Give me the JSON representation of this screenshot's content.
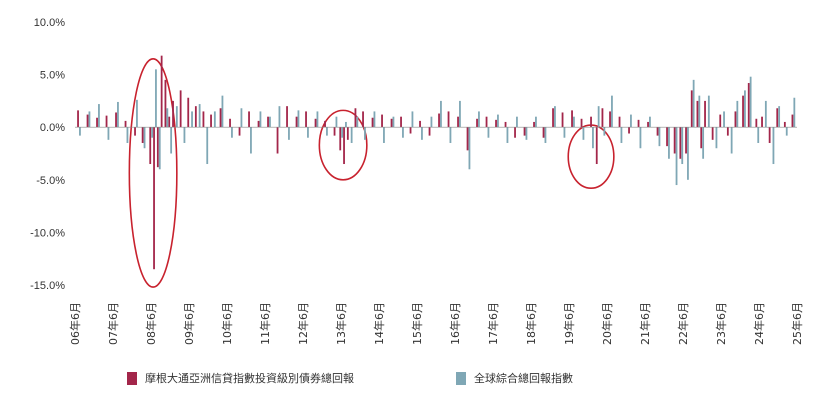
{
  "chart_data": {
    "type": "bar",
    "ylim": [
      -15,
      10
    ],
    "y_ticks": [
      "10.0%",
      "5.0%",
      "0.0%",
      "-5.0%",
      "-10.0%",
      "-15.0%"
    ],
    "y_tick_values": [
      10,
      5,
      0,
      -5,
      -10,
      -15
    ],
    "x_ticks": [
      "06年6月",
      "07年6月",
      "08年6月",
      "09年6月",
      "10年6月",
      "11年6月",
      "12年6月",
      "13年6月",
      "14年6月",
      "15年6月",
      "16年6月",
      "17年6月",
      "18年6月",
      "19年6月",
      "20年6月",
      "21年6月",
      "22年6月",
      "23年6月",
      "24年6月",
      "25年6月"
    ],
    "x_tick_values": [
      2006.42,
      2007.42,
      2008.42,
      2009.42,
      2010.42,
      2011.42,
      2012.42,
      2013.42,
      2014.42,
      2015.42,
      2016.42,
      2017.42,
      2018.42,
      2019.42,
      2020.42,
      2021.42,
      2022.42,
      2023.42,
      2024.42,
      2025.42
    ],
    "x_range": [
      2006.42,
      2025.42
    ],
    "grid": false,
    "legend_position": "bottom",
    "series": [
      {
        "name": "摩根大通亞洲信貸指數投資級別債券總回報",
        "color": "#A3264A",
        "points": [
          [
            2006.5,
            1.6
          ],
          [
            2006.75,
            1.2
          ],
          [
            2007.0,
            0.9
          ],
          [
            2007.25,
            1.1
          ],
          [
            2007.5,
            1.4
          ],
          [
            2007.75,
            0.6
          ],
          [
            2008.0,
            -0.8
          ],
          [
            2008.2,
            -1.5
          ],
          [
            2008.4,
            -3.5
          ],
          [
            2008.5,
            -13.5
          ],
          [
            2008.6,
            -3.8
          ],
          [
            2008.7,
            6.8
          ],
          [
            2008.8,
            4.5
          ],
          [
            2008.9,
            1.0
          ],
          [
            2009.0,
            2.5
          ],
          [
            2009.2,
            3.5
          ],
          [
            2009.4,
            2.8
          ],
          [
            2009.6,
            2.0
          ],
          [
            2009.8,
            1.5
          ],
          [
            2010.0,
            1.2
          ],
          [
            2010.25,
            1.8
          ],
          [
            2010.5,
            0.8
          ],
          [
            2010.75,
            -0.8
          ],
          [
            2011.0,
            1.5
          ],
          [
            2011.25,
            0.6
          ],
          [
            2011.5,
            1.0
          ],
          [
            2011.75,
            -2.5
          ],
          [
            2012.0,
            2.0
          ],
          [
            2012.25,
            1.0
          ],
          [
            2012.5,
            1.5
          ],
          [
            2012.75,
            0.8
          ],
          [
            2013.0,
            0.6
          ],
          [
            2013.25,
            -0.8
          ],
          [
            2013.4,
            -2.2
          ],
          [
            2013.5,
            -3.5
          ],
          [
            2013.6,
            -1.2
          ],
          [
            2013.8,
            1.8
          ],
          [
            2014.0,
            1.5
          ],
          [
            2014.25,
            0.9
          ],
          [
            2014.5,
            1.2
          ],
          [
            2014.75,
            0.8
          ],
          [
            2015.0,
            1.0
          ],
          [
            2015.25,
            -0.6
          ],
          [
            2015.5,
            0.6
          ],
          [
            2015.75,
            -0.8
          ],
          [
            2016.0,
            1.3
          ],
          [
            2016.25,
            1.5
          ],
          [
            2016.5,
            1.0
          ],
          [
            2016.75,
            -2.2
          ],
          [
            2017.0,
            0.8
          ],
          [
            2017.25,
            1.0
          ],
          [
            2017.5,
            0.7
          ],
          [
            2017.75,
            0.5
          ],
          [
            2018.0,
            -1.0
          ],
          [
            2018.25,
            -0.8
          ],
          [
            2018.5,
            0.5
          ],
          [
            2018.75,
            -1.0
          ],
          [
            2019.0,
            1.8
          ],
          [
            2019.25,
            1.4
          ],
          [
            2019.5,
            1.6
          ],
          [
            2019.75,
            0.8
          ],
          [
            2020.0,
            1.0
          ],
          [
            2020.15,
            -3.5
          ],
          [
            2020.3,
            1.8
          ],
          [
            2020.5,
            1.5
          ],
          [
            2020.75,
            1.0
          ],
          [
            2021.0,
            -0.6
          ],
          [
            2021.25,
            0.7
          ],
          [
            2021.5,
            0.5
          ],
          [
            2021.75,
            -0.8
          ],
          [
            2022.0,
            -1.8
          ],
          [
            2022.2,
            -2.5
          ],
          [
            2022.35,
            -3.0
          ],
          [
            2022.5,
            -2.5
          ],
          [
            2022.65,
            3.5
          ],
          [
            2022.8,
            2.5
          ],
          [
            2022.9,
            -2.0
          ],
          [
            2023.0,
            2.5
          ],
          [
            2023.2,
            -1.2
          ],
          [
            2023.4,
            1.2
          ],
          [
            2023.6,
            -0.8
          ],
          [
            2023.8,
            1.5
          ],
          [
            2024.0,
            3.0
          ],
          [
            2024.15,
            4.2
          ],
          [
            2024.35,
            0.8
          ],
          [
            2024.5,
            1.0
          ],
          [
            2024.7,
            -1.5
          ],
          [
            2024.9,
            1.8
          ],
          [
            2025.1,
            0.5
          ],
          [
            2025.3,
            1.2
          ]
        ]
      },
      {
        "name": "全球綜合總回報指數",
        "color": "#7FA7B5",
        "points": [
          [
            2006.55,
            -0.8
          ],
          [
            2006.8,
            1.5
          ],
          [
            2007.05,
            2.2
          ],
          [
            2007.3,
            -1.2
          ],
          [
            2007.55,
            2.4
          ],
          [
            2007.8,
            -1.5
          ],
          [
            2008.05,
            2.6
          ],
          [
            2008.25,
            -2.0
          ],
          [
            2008.45,
            -1.0
          ],
          [
            2008.55,
            5.5
          ],
          [
            2008.65,
            -4.0
          ],
          [
            2008.85,
            1.8
          ],
          [
            2008.95,
            -2.5
          ],
          [
            2009.1,
            2.0
          ],
          [
            2009.3,
            -1.5
          ],
          [
            2009.5,
            1.5
          ],
          [
            2009.7,
            2.2
          ],
          [
            2009.9,
            -3.5
          ],
          [
            2010.1,
            1.5
          ],
          [
            2010.3,
            3.0
          ],
          [
            2010.55,
            -1.0
          ],
          [
            2010.8,
            1.8
          ],
          [
            2011.05,
            -2.5
          ],
          [
            2011.3,
            1.5
          ],
          [
            2011.55,
            1.0
          ],
          [
            2011.8,
            2.0
          ],
          [
            2012.05,
            -1.2
          ],
          [
            2012.3,
            1.6
          ],
          [
            2012.55,
            -1.0
          ],
          [
            2012.8,
            1.5
          ],
          [
            2013.05,
            -0.8
          ],
          [
            2013.3,
            1.0
          ],
          [
            2013.45,
            -1.0
          ],
          [
            2013.55,
            0.5
          ],
          [
            2013.7,
            -1.5
          ],
          [
            2013.85,
            1.0
          ],
          [
            2014.05,
            -1.2
          ],
          [
            2014.3,
            1.5
          ],
          [
            2014.55,
            -1.5
          ],
          [
            2014.8,
            1.0
          ],
          [
            2015.05,
            -1.0
          ],
          [
            2015.3,
            1.5
          ],
          [
            2015.55,
            -1.2
          ],
          [
            2015.8,
            1.0
          ],
          [
            2016.05,
            2.5
          ],
          [
            2016.3,
            -1.5
          ],
          [
            2016.55,
            2.5
          ],
          [
            2016.8,
            -4.0
          ],
          [
            2017.05,
            1.5
          ],
          [
            2017.3,
            -1.0
          ],
          [
            2017.55,
            1.2
          ],
          [
            2017.8,
            -1.5
          ],
          [
            2018.05,
            1.0
          ],
          [
            2018.3,
            -1.2
          ],
          [
            2018.55,
            1.0
          ],
          [
            2018.8,
            -1.5
          ],
          [
            2019.05,
            2.0
          ],
          [
            2019.3,
            -1.0
          ],
          [
            2019.55,
            1.0
          ],
          [
            2019.8,
            -1.2
          ],
          [
            2020.05,
            -2.0
          ],
          [
            2020.2,
            2.0
          ],
          [
            2020.35,
            -0.8
          ],
          [
            2020.55,
            3.0
          ],
          [
            2020.8,
            -1.5
          ],
          [
            2021.05,
            1.2
          ],
          [
            2021.3,
            -2.0
          ],
          [
            2021.55,
            1.0
          ],
          [
            2021.8,
            -1.8
          ],
          [
            2022.05,
            -3.0
          ],
          [
            2022.25,
            -5.5
          ],
          [
            2022.4,
            -3.5
          ],
          [
            2022.55,
            -5.0
          ],
          [
            2022.7,
            4.5
          ],
          [
            2022.85,
            3.0
          ],
          [
            2022.95,
            -3.0
          ],
          [
            2023.1,
            3.0
          ],
          [
            2023.3,
            -2.0
          ],
          [
            2023.5,
            1.5
          ],
          [
            2023.7,
            -2.5
          ],
          [
            2023.85,
            2.5
          ],
          [
            2024.05,
            3.5
          ],
          [
            2024.2,
            4.8
          ],
          [
            2024.4,
            -1.5
          ],
          [
            2024.6,
            2.5
          ],
          [
            2024.8,
            -3.5
          ],
          [
            2024.95,
            2.0
          ],
          [
            2025.15,
            -0.8
          ],
          [
            2025.35,
            2.8
          ]
        ]
      }
    ],
    "annotations": [
      {
        "shape": "ellipse",
        "x_range": [
          2007.85,
          2009.1
        ],
        "y_range": [
          -15.2,
          6.5
        ],
        "color": "#C8222E"
      },
      {
        "shape": "ellipse",
        "x_range": [
          2012.85,
          2014.1
        ],
        "y_range": [
          -5.0,
          1.6
        ],
        "color": "#C8222E"
      },
      {
        "shape": "ellipse",
        "x_range": [
          2019.4,
          2020.6
        ],
        "y_range": [
          -5.8,
          0.2
        ],
        "color": "#C8222E"
      }
    ]
  },
  "legend": {
    "items": [
      {
        "label": "摩根大通亞洲信貸指數投資級別債券總回報",
        "color": "#A3264A"
      },
      {
        "label": "全球綜合總回報指數",
        "color": "#7FA7B5"
      }
    ]
  }
}
